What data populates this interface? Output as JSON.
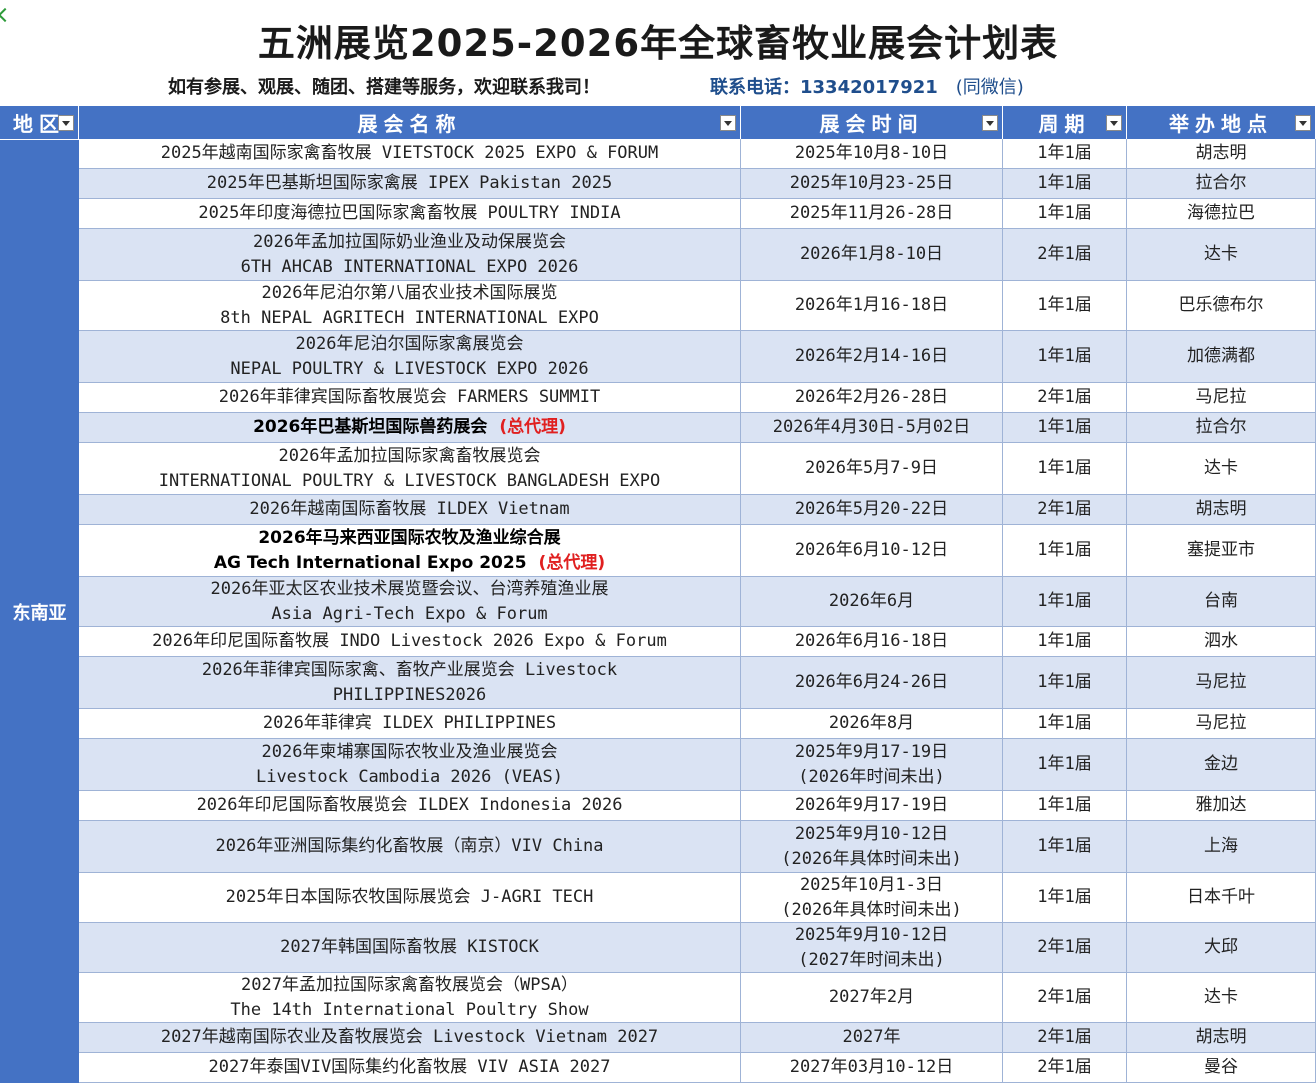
{
  "title": "五洲展览2025-2026年全球畜牧业展会计划表",
  "subtitle_left": "如有参展、观展、随团、搭建等服务，欢迎联系我司！",
  "contact": "联系电话：13342017921",
  "contact_suffix": "(同微信)",
  "headers": {
    "region": "地区",
    "name": "展会名称",
    "time": "展会时间",
    "period": "周期",
    "location": "举办地点"
  },
  "region": "东南亚",
  "rows": [
    {
      "name": [
        "2025年越南国际家禽畜牧展  VIETSTOCK 2025 EXPO & FORUM"
      ],
      "time": [
        "2025年10月8-10日"
      ],
      "period": "1年1届",
      "location": "胡志明"
    },
    {
      "name": [
        "2025年巴基斯坦国际家禽展 IPEX Pakistan 2025"
      ],
      "time": [
        "2025年10月23-25日"
      ],
      "period": "1年1届",
      "location": "拉合尔"
    },
    {
      "name": [
        "2025年印度海德拉巴国际家禽畜牧展 POULTRY INDIA"
      ],
      "time": [
        "2025年11月26-28日"
      ],
      "period": "1年1届",
      "location": "海德拉巴"
    },
    {
      "name": [
        "2026年孟加拉国际奶业渔业及动保展览会",
        "6TH AHCAB INTERNATIONAL EXPO 2026"
      ],
      "time": [
        "2026年1月8-10日"
      ],
      "period": "2年1届",
      "location": "达卡"
    },
    {
      "name": [
        "2026年尼泊尔第八届农业技术国际展览",
        "8th NEPAL AGRITECH INTERNATIONAL EXPO"
      ],
      "time": [
        "2026年1月16-18日"
      ],
      "period": "1年1届",
      "location": "巴乐德布尔"
    },
    {
      "name": [
        "2026年尼泊尔国际家禽展览会",
        "NEPAL POULTRY & LIVESTOCK EXPO 2026"
      ],
      "time": [
        "2026年2月14-16日"
      ],
      "period": "1年1届",
      "location": "加德满都"
    },
    {
      "name": [
        "2026年菲律宾国际畜牧展览会  FARMERS SUMMIT"
      ],
      "time": [
        "2026年2月26-28日"
      ],
      "period": "2年1届",
      "location": "马尼拉"
    },
    {
      "name": [
        "2026年巴基斯坦国际兽药展会"
      ],
      "name_tag": "(总代理)",
      "bold": true,
      "time": [
        "2026年4月30日-5月02日"
      ],
      "period": "1年1届",
      "location": "拉合尔"
    },
    {
      "name": [
        "2026年孟加拉国际家禽畜牧展览会",
        "INTERNATIONAL POULTRY & LIVESTOCK BANGLADESH EXPO"
      ],
      "time": [
        "2026年5月7-9日"
      ],
      "period": "1年1届",
      "location": "达卡"
    },
    {
      "name": [
        "2026年越南国际畜牧展 ILDEX Vietnam"
      ],
      "time": [
        "2026年5月20-22日"
      ],
      "period": "2年1届",
      "location": "胡志明"
    },
    {
      "name": [
        "2026年马来西亚国际农牧及渔业综合展",
        "AG Tech International Expo 2025"
      ],
      "name_tag": "(总代理)",
      "bold": true,
      "time": [
        "2026年6月10-12日"
      ],
      "period": "1年1届",
      "location": "塞提亚市"
    },
    {
      "name": [
        "2026年亚太区农业技术展览暨会议、台湾养殖渔业展",
        "Asia Agri-Tech Expo & Forum"
      ],
      "time": [
        "2026年6月"
      ],
      "period": "1年1届",
      "location": "台南"
    },
    {
      "name": [
        "2026年印尼国际畜牧展  INDO Livestock 2026 Expo & Forum"
      ],
      "time": [
        "2026年6月16-18日"
      ],
      "period": "1年1届",
      "location": "泗水"
    },
    {
      "name": [
        "2026年菲律宾国际家禽、畜牧产业展览会 Livestock",
        "PHILIPPINES2026"
      ],
      "time": [
        "2026年6月24-26日"
      ],
      "period": "1年1届",
      "location": "马尼拉"
    },
    {
      "name": [
        "2026年菲律宾 ILDEX PHILIPPINES"
      ],
      "time": [
        "2026年8月"
      ],
      "period": "1年1届",
      "location": "马尼拉"
    },
    {
      "name": [
        "2026年柬埔寨国际农牧业及渔业展览会",
        "Livestock Cambodia 2026 (VEAS)"
      ],
      "time": [
        "2025年9月17-19日",
        "(2026年时间未出)"
      ],
      "period": "1年1届",
      "location": "金边"
    },
    {
      "name": [
        "2026年印尼国际畜牧展览会 ILDEX Indonesia 2026"
      ],
      "time": [
        "2026年9月17-19日"
      ],
      "period": "1年1届",
      "location": "雅加达"
    },
    {
      "name": [
        "2026年亚洲国际集约化畜牧展（南京）VIV China"
      ],
      "time": [
        "2025年9月10-12日",
        "(2026年具体时间未出)"
      ],
      "period": "1年1届",
      "location": "上海"
    },
    {
      "name": [
        "2025年日本国际农牧国际展览会 J-AGRI TECH"
      ],
      "time": [
        "2025年10月1-3日",
        "(2026年具体时间未出)"
      ],
      "period": "1年1届",
      "location": "日本千叶"
    },
    {
      "name": [
        "2027年韩国国际畜牧展 KISTOCK"
      ],
      "time": [
        "2025年9月10-12日",
        "(2027年时间未出)"
      ],
      "period": "2年1届",
      "location": "大邱"
    },
    {
      "name": [
        "2027年孟加拉国际家禽畜牧展览会（WPSA）",
        "The 14th  International Poultry Show"
      ],
      "time": [
        "2027年2月"
      ],
      "period": "2年1届",
      "location": "达卡"
    },
    {
      "name": [
        "2027年越南国际农业及畜牧展览会 Livestock Vietnam 2027"
      ],
      "time": [
        "2027年"
      ],
      "period": "2年1届",
      "location": "胡志明"
    },
    {
      "name": [
        "2027年泰国VIV国际集约化畜牧展  VIV ASIA 2027"
      ],
      "time": [
        "2027年03月10-12日"
      ],
      "period": "2年1届",
      "location": "曼谷"
    }
  ]
}
